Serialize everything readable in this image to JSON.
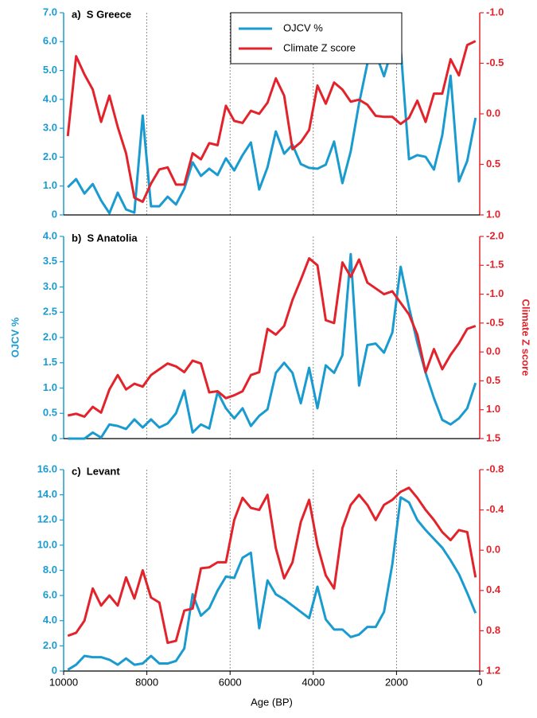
{
  "chart_data": [
    {
      "type": "line",
      "title": "a)  S Greece",
      "legend": "upper center",
      "x": [
        9900,
        9700,
        9500,
        9300,
        9100,
        8900,
        8700,
        8500,
        8300,
        8100,
        7900,
        7700,
        7500,
        7300,
        7100,
        6900,
        6700,
        6500,
        6300,
        6100,
        5900,
        5700,
        5500,
        5300,
        5100,
        4900,
        4700,
        4500,
        4300,
        4100,
        3900,
        3700,
        3500,
        3300,
        3100,
        2900,
        2700,
        2500,
        2300,
        2100,
        1900,
        1700,
        1500,
        1300,
        1100,
        900,
        700,
        500,
        300,
        100
      ],
      "series": [
        {
          "name": "OJCV %",
          "color": "#1a9bd0",
          "values": [
            0.96,
            1.24,
            0.74,
            1.07,
            0.5,
            0.06,
            0.77,
            0.19,
            0.08,
            3.44,
            0.3,
            0.3,
            0.63,
            0.36,
            0.91,
            1.82,
            1.35,
            1.6,
            1.38,
            1.96,
            1.54,
            2.07,
            2.51,
            0.88,
            1.65,
            2.89,
            2.12,
            2.43,
            1.76,
            1.63,
            1.6,
            1.74,
            2.54,
            1.1,
            2.2,
            3.86,
            5.24,
            5.6,
            4.8,
            5.79,
            5.79,
            1.93,
            2.07,
            2.01,
            1.57,
            2.76,
            4.82,
            1.16,
            1.87,
            3.36
          ]
        },
        {
          "name": "Climate Z score",
          "color": "#e3232b",
          "axis": "y2",
          "values": [
            0.22,
            -0.57,
            -0.39,
            -0.24,
            0.08,
            -0.18,
            0.13,
            0.39,
            0.83,
            0.87,
            0.69,
            0.55,
            0.53,
            0.7,
            0.7,
            0.39,
            0.45,
            0.29,
            0.31,
            -0.08,
            0.07,
            0.09,
            -0.03,
            0,
            -0.11,
            -0.35,
            -0.18,
            0.35,
            0.28,
            0.16,
            -0.28,
            -0.1,
            -0.31,
            -0.24,
            -0.12,
            -0.14,
            -0.09,
            0.02,
            0.03,
            0.03,
            0.1,
            0.04,
            -0.13,
            0.08,
            -0.2,
            -0.2,
            -0.54,
            -0.38,
            -0.68,
            -0.72
          ]
        }
      ],
      "xlim": [
        10000,
        0
      ],
      "vlines": [
        8000,
        6000,
        4000,
        2000
      ],
      "ylim": [
        0,
        7
      ],
      "yticks": [
        {
          "value": 7,
          "label": "7.0"
        },
        {
          "value": 6,
          "label": "6.0"
        },
        {
          "value": 5,
          "label": "5.0"
        },
        {
          "value": 4,
          "label": "4.0"
        },
        {
          "value": 3,
          "label": "3.0"
        },
        {
          "value": 2,
          "label": "2.0"
        },
        {
          "value": 1,
          "label": "1.0"
        },
        0
      ],
      "y2lim": [
        1,
        -1
      ],
      "y2ticks": [
        {
          "value": -1,
          "label": "-1.0"
        },
        -0.5,
        {
          "value": 0,
          "label": "0.0"
        },
        0.5,
        {
          "value": 1,
          "label": "1.0"
        }
      ]
    },
    {
      "type": "line",
      "title": "b)  S Anatolia",
      "ylabel": "OJCV %",
      "y2label": "Climate Z score",
      "x": [
        9900,
        9700,
        9500,
        9300,
        9100,
        8900,
        8700,
        8500,
        8300,
        8100,
        7900,
        7700,
        7500,
        7300,
        7100,
        6900,
        6700,
        6500,
        6300,
        6100,
        5900,
        5700,
        5500,
        5300,
        5100,
        4900,
        4700,
        4500,
        4300,
        4100,
        3900,
        3700,
        3500,
        3300,
        3100,
        2900,
        2700,
        2500,
        2300,
        2100,
        1900,
        1700,
        1500,
        1300,
        1100,
        900,
        700,
        500,
        300,
        100
      ],
      "series": [
        {
          "color": "#1a9bd0",
          "values": [
            0,
            0,
            0,
            0.12,
            0.02,
            0.28,
            0.25,
            0.19,
            0.38,
            0.22,
            0.38,
            0.22,
            0.3,
            0.5,
            0.95,
            0.12,
            0.28,
            0.2,
            0.92,
            0.6,
            0.4,
            0.6,
            0.25,
            0.45,
            0.58,
            1.3,
            1.5,
            1.3,
            0.7,
            1.4,
            0.6,
            1.45,
            1.3,
            1.65,
            3.65,
            1.05,
            1.85,
            1.88,
            1.7,
            2.1,
            3.4,
            2.6,
            1.9,
            1.3,
            0.8,
            0.37,
            0.28,
            0.4,
            0.6,
            1.1
          ]
        },
        {
          "color": "#e3232b",
          "axis": "y2",
          "values": [
            1.1,
            1.07,
            1.12,
            0.95,
            1.05,
            0.65,
            0.4,
            0.65,
            0.55,
            0.6,
            0.4,
            0.3,
            0.2,
            0.25,
            0.35,
            0.15,
            0.2,
            0.7,
            0.68,
            0.8,
            0.75,
            0.68,
            0.4,
            0.35,
            -0.4,
            -0.3,
            -0.45,
            -0.9,
            -1.25,
            -1.62,
            -1.5,
            -0.55,
            -0.5,
            -1.55,
            -1.3,
            -1.6,
            -1.2,
            -1.1,
            -1,
            -1.05,
            -0.85,
            -0.65,
            -0.3,
            0.35,
            -0.05,
            0.3,
            0.05,
            -0.15,
            -0.4,
            -0.45
          ]
        }
      ],
      "xlim": [
        10000,
        0
      ],
      "vlines": [
        8000,
        6000,
        4000,
        2000
      ],
      "ylim": [
        0,
        4
      ],
      "yticks": [
        {
          "value": 4,
          "label": "4.0"
        },
        3.5,
        {
          "value": 3,
          "label": "3.0"
        },
        2.5,
        {
          "value": 2,
          "label": "2.0"
        },
        1.5,
        {
          "value": 1,
          "label": "1.0"
        },
        0.5,
        0
      ],
      "y2lim": [
        1.5,
        -2
      ],
      "y2ticks": [
        {
          "value": -2,
          "label": "-2.0"
        },
        -1.5,
        {
          "value": -1,
          "label": "-1.0"
        },
        -0.5,
        {
          "value": 0,
          "label": "0.0"
        },
        0.5,
        {
          "value": 1,
          "label": "1.0"
        },
        1.5
      ]
    },
    {
      "type": "line",
      "title": "c)  Levant",
      "xlabel": "Age (BP)",
      "x": [
        9900,
        9700,
        9500,
        9300,
        9100,
        8900,
        8700,
        8500,
        8300,
        8100,
        7900,
        7700,
        7500,
        7300,
        7100,
        6900,
        6700,
        6500,
        6300,
        6100,
        5900,
        5700,
        5500,
        5300,
        5100,
        4900,
        4700,
        4500,
        4300,
        4100,
        3900,
        3700,
        3500,
        3300,
        3100,
        2900,
        2700,
        2500,
        2300,
        2100,
        1900,
        1700,
        1500,
        1300,
        1100,
        900,
        700,
        500,
        300,
        100
      ],
      "series": [
        {
          "color": "#1a9bd0",
          "values": [
            0.1,
            0.5,
            1.2,
            1.1,
            1.1,
            0.9,
            0.5,
            1,
            0.5,
            0.6,
            1.2,
            0.6,
            0.6,
            0.8,
            1.8,
            6.1,
            4.4,
            5,
            6.4,
            7.5,
            7.4,
            9,
            9.4,
            3.4,
            7.2,
            6.1,
            5.7,
            5.2,
            4.7,
            4.2,
            6.7,
            4.1,
            3.3,
            3.3,
            2.7,
            2.9,
            3.5,
            3.5,
            4.7,
            8.5,
            13.8,
            13.4,
            12,
            11.2,
            10.5,
            9.8,
            8.8,
            7.7,
            6.2,
            4.6
          ]
        },
        {
          "color": "#e3232b",
          "axis": "y2",
          "values": [
            0.85,
            0.82,
            0.7,
            0.38,
            0.55,
            0.45,
            0.55,
            0.27,
            0.48,
            0.2,
            0.47,
            0.52,
            0.92,
            0.9,
            0.6,
            0.58,
            0.18,
            0.17,
            0.12,
            0.12,
            -0.3,
            -0.52,
            -0.42,
            -0.4,
            -0.55,
            -0.02,
            0.28,
            0.12,
            -0.28,
            -0.5,
            -0.05,
            0.25,
            0.38,
            -0.22,
            -0.45,
            -0.55,
            -0.45,
            -0.3,
            -0.45,
            -0.5,
            -0.58,
            -0.62,
            -0.52,
            -0.4,
            -0.3,
            -0.18,
            -0.1,
            -0.2,
            -0.18,
            0.27
          ]
        }
      ],
      "xlim": [
        10000,
        0
      ],
      "xticks": [
        10000,
        8000,
        6000,
        4000,
        2000,
        0
      ],
      "vlines": [
        8000,
        6000,
        4000,
        2000
      ],
      "ylim": [
        0,
        16
      ],
      "yticks": [
        {
          "value": 16,
          "label": "16.0"
        },
        {
          "value": 14,
          "label": "14.0"
        },
        {
          "value": 12,
          "label": "12.0"
        },
        {
          "value": 10,
          "label": "10.0"
        },
        {
          "value": 8,
          "label": "8.0"
        },
        {
          "value": 6,
          "label": "6.0"
        },
        {
          "value": 4,
          "label": "4.0"
        },
        {
          "value": 2,
          "label": "2.0"
        },
        0
      ],
      "y2lim": [
        1.2,
        -0.8
      ],
      "y2ticks": [
        -0.8,
        -0.4,
        {
          "value": 0,
          "label": "0.0"
        },
        0.4,
        0.8,
        1.2
      ]
    }
  ]
}
